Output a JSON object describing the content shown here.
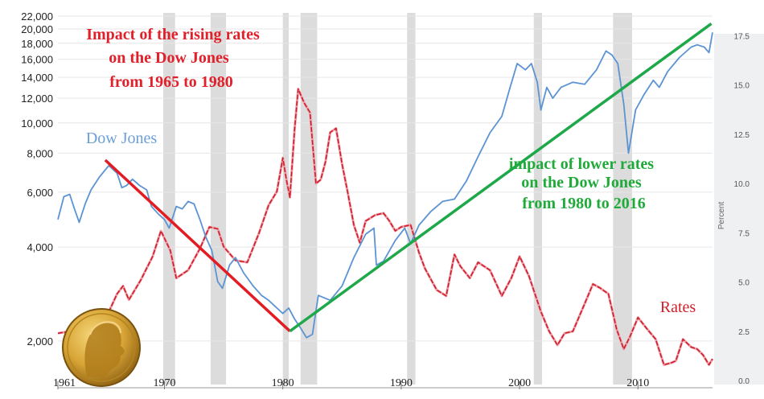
{
  "chart_data": {
    "type": "line",
    "annotations": {
      "rising": [
        "Impact of the rising rates",
        "on the Dow Jones",
        "from 1965 to 1980"
      ],
      "lower": [
        "impact of lower rates",
        "on the Dow Jones",
        "from 1980 to 2016"
      ]
    },
    "left_axis": {
      "scale": "log",
      "ticks": [
        2000,
        4000,
        6000,
        8000,
        10000,
        12000,
        14000,
        16000,
        18000,
        20000,
        22000
      ],
      "tick_labels": [
        "2,000",
        "4,000",
        "6,000",
        "8,000",
        "10,000",
        "12,000",
        "14,000",
        "16,000",
        "18,000",
        "20,000",
        "22,000"
      ],
      "ylim": [
        1450,
        22000
      ]
    },
    "right_axis": {
      "label": "Percent",
      "ticks": [
        0.0,
        2.5,
        5.0,
        7.5,
        10.0,
        12.5,
        15.0,
        17.5
      ],
      "tick_labels": [
        "0.0",
        "2.5",
        "5.0",
        "7.5",
        "10.0",
        "12.5",
        "15.0",
        "17.5"
      ],
      "ylim": [
        -0.2,
        18.5
      ]
    },
    "x_axis": {
      "ticks": [
        1961,
        1970,
        1980,
        1990,
        2000,
        2010
      ],
      "tick_labels": [
        "1961",
        "1970",
        "1980",
        "1990",
        "2000",
        "2010"
      ],
      "xlim": [
        1961,
        2016.3
      ]
    },
    "recessions": [
      [
        1969.9,
        1970.9
      ],
      [
        1973.9,
        1975.2
      ],
      [
        1980.0,
        1980.5
      ],
      [
        1981.5,
        1982.9
      ],
      [
        1990.5,
        1991.2
      ],
      [
        2001.2,
        2001.9
      ],
      [
        2007.9,
        2009.5
      ]
    ],
    "series": [
      {
        "name": "Dow Jones",
        "color": "#5b93d3",
        "x": [
          1961.0,
          1961.5,
          1962.0,
          1962.4,
          1962.8,
          1963.3,
          1963.8,
          1964.5,
          1965.3,
          1966.0,
          1966.4,
          1966.8,
          1967.3,
          1967.9,
          1968.5,
          1968.9,
          1969.5,
          1970.0,
          1970.4,
          1971.0,
          1971.5,
          1972.0,
          1972.5,
          1973.0,
          1973.5,
          1974.0,
          1974.5,
          1974.9,
          1975.5,
          1976.0,
          1976.7,
          1977.5,
          1978.2,
          1978.8,
          1979.5,
          1980.0,
          1980.5,
          1981.0,
          1981.5,
          1982.0,
          1982.5,
          1983.0,
          1984.0,
          1985.0,
          1986.0,
          1987.0,
          1987.7,
          1987.9,
          1988.5,
          1989.5,
          1990.3,
          1990.8,
          1991.5,
          1992.5,
          1993.5,
          1994.5,
          1995.5,
          1996.5,
          1997.5,
          1998.5,
          1999.2,
          1999.8,
          2000.5,
          2001.0,
          2001.5,
          2001.8,
          2002.3,
          2002.8,
          2003.5,
          2004.5,
          2005.5,
          2006.5,
          2007.3,
          2007.8,
          2008.3,
          2008.8,
          2009.2,
          2009.8,
          2010.5,
          2011.3,
          2011.8,
          2012.5,
          2013.5,
          2014.5,
          2015.0,
          2015.6,
          2016.0,
          2016.3
        ],
        "values": [
          4900,
          5800,
          5900,
          5300,
          4800,
          5500,
          6100,
          6700,
          7300,
          6900,
          6200,
          6300,
          6600,
          6300,
          6100,
          5400,
          5100,
          4900,
          4600,
          5400,
          5300,
          5600,
          5500,
          4900,
          4300,
          3900,
          3100,
          2950,
          3500,
          3700,
          3300,
          3000,
          2800,
          2700,
          2550,
          2450,
          2550,
          2350,
          2200,
          2050,
          2100,
          2800,
          2700,
          3000,
          3700,
          4400,
          4600,
          3500,
          3600,
          4200,
          4600,
          4100,
          4700,
          5200,
          5600,
          5700,
          6500,
          7800,
          9300,
          10500,
          13000,
          15500,
          14800,
          15500,
          13500,
          11000,
          13000,
          12000,
          13000,
          13500,
          13300,
          14800,
          17000,
          16500,
          15500,
          11500,
          8000,
          11000,
          12300,
          13700,
          13000,
          14600,
          16200,
          17500,
          17800,
          17500,
          16800,
          19500
        ]
      },
      {
        "name": "Rates",
        "color": "#cc1f2e",
        "x": [
          1961.0,
          1962.0,
          1963.0,
          1964.0,
          1965.0,
          1966.0,
          1966.5,
          1967.0,
          1968.0,
          1969.0,
          1969.7,
          1970.5,
          1971.0,
          1972.0,
          1973.0,
          1973.8,
          1974.5,
          1975.0,
          1976.0,
          1977.0,
          1978.0,
          1978.8,
          1979.5,
          1980.0,
          1980.3,
          1980.6,
          1981.0,
          1981.3,
          1981.8,
          1982.3,
          1982.8,
          1983.2,
          1983.6,
          1984.0,
          1984.5,
          1985.0,
          1985.5,
          1986.0,
          1986.5,
          1987.0,
          1987.8,
          1988.5,
          1989.0,
          1989.5,
          1990.0,
          1990.8,
          1991.5,
          1992.0,
          1993.0,
          1993.8,
          1994.5,
          1995.0,
          1995.8,
          1996.5,
          1997.5,
          1998.5,
          1999.3,
          2000.0,
          2000.8,
          2001.8,
          2002.5,
          2003.2,
          2003.8,
          2004.5,
          2005.5,
          2006.2,
          2006.8,
          2007.5,
          2008.2,
          2008.8,
          2009.3,
          2010.0,
          2010.8,
          2011.5,
          2012.2,
          2012.8,
          2013.2,
          2013.8,
          2014.5,
          2015.0,
          2015.5,
          2016.0,
          2016.3
        ],
        "values": [
          2.4,
          2.5,
          2.7,
          2.8,
          3.1,
          4.4,
          4.8,
          4.1,
          5.1,
          6.3,
          7.6,
          6.6,
          5.2,
          5.6,
          6.7,
          7.8,
          7.7,
          6.8,
          6.1,
          6.0,
          7.5,
          8.9,
          9.6,
          11.3,
          10.2,
          9.3,
          12.8,
          14.8,
          14.1,
          13.6,
          10.0,
          10.2,
          11.1,
          12.6,
          12.8,
          11.0,
          9.5,
          7.9,
          7.0,
          8.1,
          8.4,
          8.5,
          8.1,
          7.6,
          7.8,
          7.9,
          6.5,
          5.7,
          4.6,
          4.3,
          6.4,
          5.8,
          5.2,
          6.0,
          5.6,
          4.3,
          5.2,
          6.3,
          5.3,
          3.5,
          2.5,
          1.8,
          2.4,
          2.5,
          3.9,
          4.9,
          4.7,
          4.4,
          2.6,
          1.6,
          2.2,
          3.2,
          2.6,
          2.1,
          0.8,
          0.9,
          1.0,
          2.1,
          1.7,
          1.6,
          1.3,
          0.8,
          1.1
        ]
      },
      {
        "name": "",
        "color": "#e31b23",
        "x": [
          1965.0,
          1980.6
        ],
        "values": [
          7600,
          2150
        ]
      },
      {
        "name": "",
        "color": "#1fa84a",
        "x": [
          1980.6,
          2016.2
        ],
        "values": [
          2150,
          20800
        ]
      }
    ],
    "series_labels": {
      "dow": "Dow Jones",
      "rates": "Rates"
    }
  }
}
